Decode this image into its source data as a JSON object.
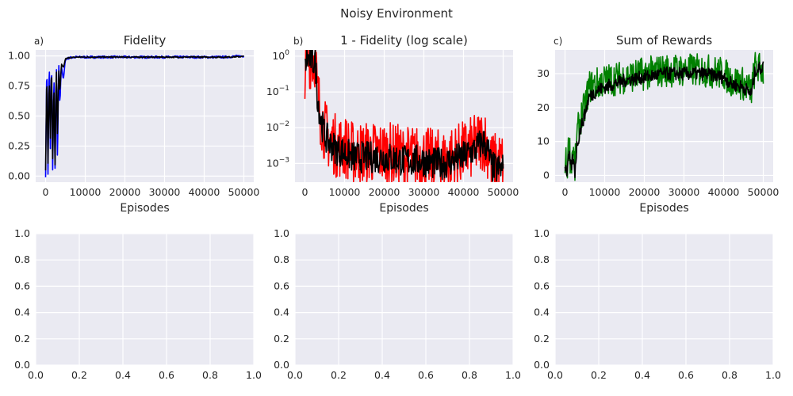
{
  "figure": {
    "suptitle": "Noisy Environment"
  },
  "chart_data": [
    {
      "type": "line",
      "panel_label": "a)",
      "title": "Fidelity",
      "xlabel": "Episodes",
      "ylabel": "",
      "xlim": [
        -2500,
        52500
      ],
      "ylim": [
        -0.05,
        1.05
      ],
      "xticks": [
        0,
        10000,
        20000,
        30000,
        40000,
        50000
      ],
      "yticks": [
        0.0,
        0.25,
        0.5,
        0.75,
        1.0
      ],
      "xtick_labels": [
        "0",
        "10000",
        "20000",
        "30000",
        "40000",
        "50000"
      ],
      "ytick_labels": [
        "0.00",
        "0.25",
        "0.50",
        "0.75",
        "1.00"
      ],
      "grid": true,
      "series": [
        {
          "color": "#0000ff",
          "role": "raw",
          "noise": 0.01,
          "x": [
            0,
            300,
            600,
            900,
            1200,
            1500,
            1800,
            2100,
            2400,
            2700,
            3000,
            3300,
            3600,
            4000,
            4500,
            5000,
            6000,
            8000,
            10000,
            15000,
            20000,
            25000,
            30000,
            35000,
            40000,
            45000,
            50000
          ],
          "y": [
            0.0,
            1.0,
            0.0,
            1.0,
            0.2,
            1.0,
            0.0,
            0.9,
            0.0,
            1.0,
            0.1,
            0.95,
            0.6,
            0.92,
            0.8,
            0.97,
            0.985,
            0.99,
            0.99,
            0.99,
            0.99,
            0.99,
            0.99,
            0.99,
            0.99,
            0.99,
            1.0
          ]
        },
        {
          "color": "#000000",
          "role": "smoothed",
          "noise": 0.005,
          "x": [
            0,
            300,
            600,
            900,
            1200,
            1500,
            1800,
            2100,
            2400,
            2700,
            3000,
            3300,
            3600,
            4000,
            4500,
            5000,
            6000,
            8000,
            10000,
            15000,
            20000,
            25000,
            30000,
            35000,
            40000,
            45000,
            50000
          ],
          "y": [
            0.05,
            0.9,
            0.1,
            0.85,
            0.3,
            0.95,
            0.1,
            0.8,
            0.05,
            0.95,
            0.3,
            0.9,
            0.7,
            0.93,
            0.9,
            0.975,
            0.985,
            0.99,
            0.99,
            0.99,
            0.99,
            0.99,
            0.99,
            0.99,
            0.99,
            0.99,
            0.995
          ]
        }
      ]
    },
    {
      "type": "line",
      "panel_label": "b)",
      "title": "1 - Fidelity (log scale)",
      "xlabel": "Episodes",
      "ylabel": "",
      "yscale": "log",
      "xlim": [
        -2500,
        52500
      ],
      "ylim": [
        0.0003,
        1.5
      ],
      "xticks": [
        0,
        10000,
        20000,
        30000,
        40000,
        50000
      ],
      "yticks": [
        0.001,
        0.01,
        0.1,
        1
      ],
      "xtick_labels": [
        "0",
        "10000",
        "20000",
        "30000",
        "40000",
        "50000"
      ],
      "ytick_labels": [
        {
          "base": "10",
          "exp": "−3"
        },
        {
          "base": "10",
          "exp": "−2"
        },
        {
          "base": "10",
          "exp": "−1"
        },
        {
          "base": "10",
          "exp": "0"
        }
      ],
      "grid": true,
      "series": [
        {
          "color": "#ff0000",
          "role": "raw",
          "noise": 0.9,
          "x": [
            0,
            500,
            1000,
            1500,
            2000,
            2500,
            3000,
            3500,
            4000,
            5000,
            6000,
            7000,
            8000,
            10000,
            12000,
            15000,
            20000,
            25000,
            30000,
            32000,
            35000,
            40000,
            43000,
            45000,
            46000,
            47000,
            48000,
            50000
          ],
          "y": [
            0.5,
            1.0,
            0.9,
            1.0,
            0.8,
            1.0,
            0.1,
            0.05,
            0.02,
            0.008,
            0.005,
            0.004,
            0.003,
            0.003,
            0.002,
            0.002,
            0.002,
            0.0015,
            0.0015,
            0.0012,
            0.0012,
            0.002,
            0.003,
            0.005,
            0.003,
            0.001,
            0.001,
            0.001
          ]
        },
        {
          "color": "#000000",
          "role": "smoothed",
          "noise": 0.45,
          "x": [
            0,
            500,
            1000,
            1500,
            2000,
            2500,
            3000,
            3500,
            4000,
            5000,
            6000,
            7000,
            8000,
            10000,
            12000,
            15000,
            20000,
            25000,
            30000,
            32000,
            35000,
            40000,
            43000,
            45000,
            46000,
            47000,
            48000,
            50000
          ],
          "y": [
            0.4,
            0.9,
            0.8,
            0.9,
            0.7,
            0.8,
            0.1,
            0.04,
            0.015,
            0.006,
            0.004,
            0.003,
            0.0025,
            0.002,
            0.0015,
            0.0015,
            0.0015,
            0.0012,
            0.0012,
            0.001,
            0.001,
            0.0015,
            0.0025,
            0.004,
            0.0025,
            0.0008,
            0.0007,
            0.0007
          ]
        }
      ]
    },
    {
      "type": "line",
      "panel_label": "c)",
      "title": "Sum of Rewards",
      "xlabel": "Episodes",
      "ylabel": "",
      "xlim": [
        -2500,
        52500
      ],
      "ylim": [
        -2,
        37
      ],
      "xticks": [
        0,
        10000,
        20000,
        30000,
        40000,
        50000
      ],
      "yticks": [
        0,
        10,
        20,
        30
      ],
      "xtick_labels": [
        "0",
        "10000",
        "20000",
        "30000",
        "40000",
        "50000"
      ],
      "ytick_labels": [
        "0",
        "10",
        "20",
        "30"
      ],
      "grid": true,
      "series": [
        {
          "color": "#008000",
          "role": "raw",
          "noise": 5,
          "x": [
            0,
            500,
            1000,
            1500,
            2000,
            2500,
            3000,
            4000,
            5000,
            6000,
            8000,
            10000,
            15000,
            20000,
            25000,
            30000,
            35000,
            40000,
            42000,
            45000,
            47000,
            48000,
            50000
          ],
          "y": [
            5,
            2,
            10,
            3,
            8,
            2,
            12,
            17,
            20,
            26,
            27,
            28,
            29,
            30,
            31,
            31,
            31,
            30,
            28,
            27,
            25,
            32,
            31
          ]
        },
        {
          "color": "#000000",
          "role": "smoothed",
          "noise": 2,
          "x": [
            0,
            500,
            1000,
            1500,
            2000,
            2500,
            3000,
            4000,
            5000,
            6000,
            8000,
            10000,
            15000,
            20000,
            25000,
            30000,
            35000,
            40000,
            42000,
            45000,
            47000,
            48000,
            50000
          ],
          "y": [
            3,
            1,
            6,
            2,
            5,
            1,
            9,
            14,
            18,
            23,
            25,
            26,
            28,
            29,
            30,
            30,
            30,
            29,
            27,
            26,
            24,
            31,
            32
          ]
        }
      ]
    },
    {
      "type": "line",
      "panel_label": "",
      "title": "",
      "xlabel": "",
      "ylabel": "",
      "xlim": [
        0,
        1
      ],
      "ylim": [
        0,
        1
      ],
      "xticks": [
        0,
        0.2,
        0.4,
        0.6,
        0.8,
        1.0
      ],
      "yticks": [
        0,
        0.2,
        0.4,
        0.6,
        0.8,
        1.0
      ],
      "xtick_labels": [
        "0.0",
        "0.2",
        "0.4",
        "0.6",
        "0.8",
        "1.0"
      ],
      "ytick_labels": [
        "0.0",
        "0.2",
        "0.4",
        "0.6",
        "0.8",
        "1.0"
      ],
      "grid": true,
      "series": []
    },
    {
      "type": "line",
      "panel_label": "",
      "title": "",
      "xlabel": "",
      "ylabel": "",
      "xlim": [
        0,
        1
      ],
      "ylim": [
        0,
        1
      ],
      "xticks": [
        0,
        0.2,
        0.4,
        0.6,
        0.8,
        1.0
      ],
      "yticks": [
        0,
        0.2,
        0.4,
        0.6,
        0.8,
        1.0
      ],
      "xtick_labels": [
        "0.0",
        "0.2",
        "0.4",
        "0.6",
        "0.8",
        "1.0"
      ],
      "ytick_labels": [
        "0.0",
        "0.2",
        "0.4",
        "0.6",
        "0.8",
        "1.0"
      ],
      "grid": true,
      "series": []
    },
    {
      "type": "line",
      "panel_label": "",
      "title": "",
      "xlabel": "",
      "ylabel": "",
      "xlim": [
        0,
        1
      ],
      "ylim": [
        0,
        1
      ],
      "xticks": [
        0,
        0.2,
        0.4,
        0.6,
        0.8,
        1.0
      ],
      "yticks": [
        0,
        0.2,
        0.4,
        0.6,
        0.8,
        1.0
      ],
      "xtick_labels": [
        "0.0",
        "0.2",
        "0.4",
        "0.6",
        "0.8",
        "1.0"
      ],
      "ytick_labels": [
        "0.0",
        "0.2",
        "0.4",
        "0.6",
        "0.8",
        "1.0"
      ],
      "grid": true,
      "series": []
    }
  ]
}
